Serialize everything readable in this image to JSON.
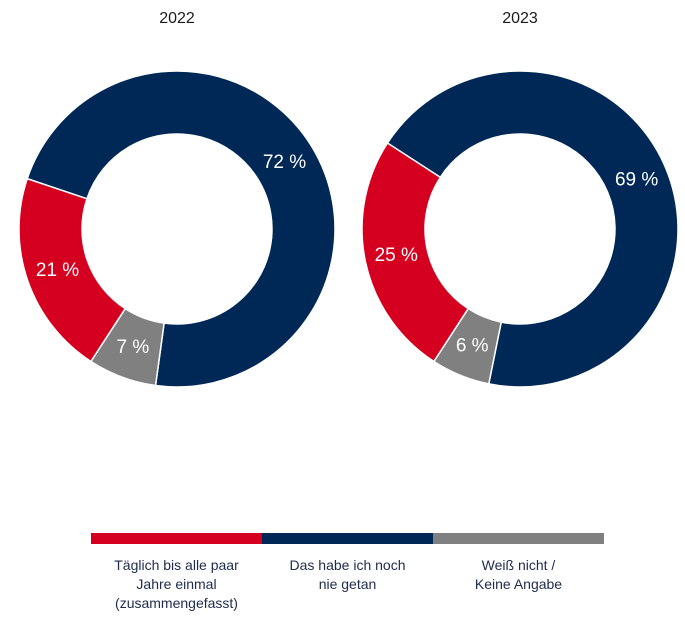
{
  "chart_data": {
    "type": "pie",
    "variant": "donut",
    "categories": [
      "Täglich bis alle paar Jahre einmal (zusammengefasst)",
      "Das habe ich noch nie getan",
      "Weiß nicht / Keine Angabe"
    ],
    "colors": [
      "#d50020",
      "#002856",
      "#808080"
    ],
    "charts": [
      {
        "title": "2022",
        "values": [
          21,
          72,
          7
        ],
        "labels": [
          "21 %",
          "72 %",
          "7 %"
        ]
      },
      {
        "title": "2023",
        "values": [
          25,
          69,
          6
        ],
        "labels": [
          "25 %",
          "69 %",
          "6 %"
        ]
      }
    ],
    "legend": {
      "placement": "bottom",
      "items": [
        {
          "label": "Täglich bis alle paar\nJahre einmal\n(zusammengefasst)",
          "color": "#d50020"
        },
        {
          "label": "Das habe ich noch\nnie getan",
          "color": "#002856"
        },
        {
          "label": "Weiß nicht /\nKeine Angabe",
          "color": "#808080"
        }
      ]
    }
  }
}
